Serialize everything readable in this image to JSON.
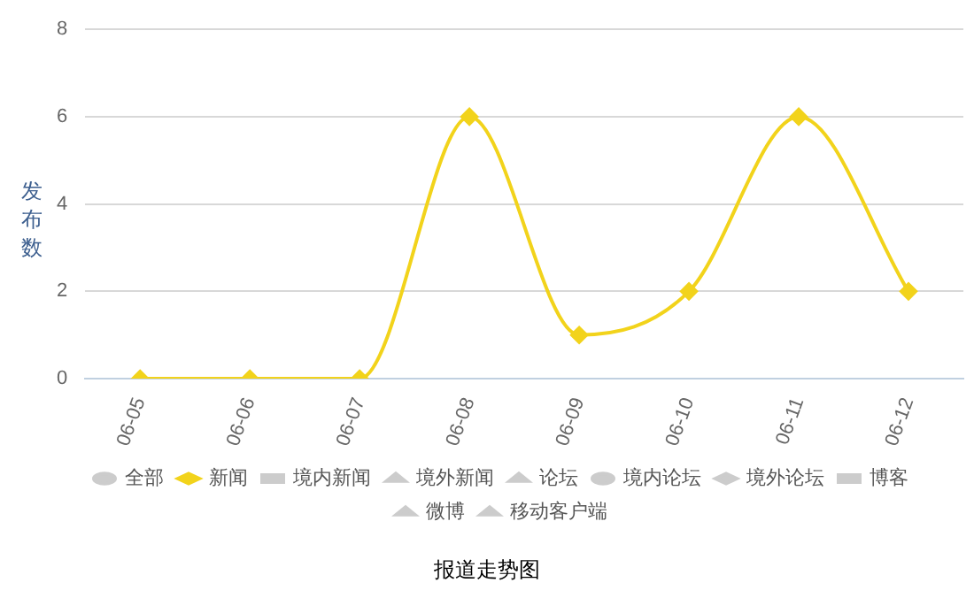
{
  "chart_data": {
    "type": "line",
    "title": "报道走势图",
    "ylabel": "发布数",
    "categories": [
      "06-05",
      "06-06",
      "06-07",
      "06-08",
      "06-09",
      "06-10",
      "06-11",
      "06-12"
    ],
    "series": [
      {
        "name": "全部",
        "color": "#cccccc",
        "marker": "circle",
        "values": [
          null,
          null,
          null,
          null,
          null,
          null,
          null,
          null
        ]
      },
      {
        "name": "新闻",
        "color": "#f2d31b",
        "marker": "diamond",
        "values": [
          0,
          0,
          0,
          6,
          1,
          2,
          6,
          2
        ]
      },
      {
        "name": "境内新闻",
        "color": "#cccccc",
        "marker": "square",
        "values": [
          null,
          null,
          null,
          null,
          null,
          null,
          null,
          null
        ]
      },
      {
        "name": "境外新闻",
        "color": "#cccccc",
        "marker": "triangle",
        "values": [
          null,
          null,
          null,
          null,
          null,
          null,
          null,
          null
        ]
      },
      {
        "name": "论坛",
        "color": "#cccccc",
        "marker": "triangle",
        "values": [
          null,
          null,
          null,
          null,
          null,
          null,
          null,
          null
        ]
      },
      {
        "name": "境内论坛",
        "color": "#cccccc",
        "marker": "circle",
        "values": [
          null,
          null,
          null,
          null,
          null,
          null,
          null,
          null
        ]
      },
      {
        "name": "境外论坛",
        "color": "#cccccc",
        "marker": "diamond",
        "values": [
          null,
          null,
          null,
          null,
          null,
          null,
          null,
          null
        ]
      },
      {
        "name": "博客",
        "color": "#cccccc",
        "marker": "square",
        "values": [
          null,
          null,
          null,
          null,
          null,
          null,
          null,
          null
        ]
      },
      {
        "name": "微博",
        "color": "#cccccc",
        "marker": "triangle",
        "values": [
          null,
          null,
          null,
          null,
          null,
          null,
          null,
          null
        ]
      },
      {
        "name": "移动客户端",
        "color": "#cccccc",
        "marker": "triangle",
        "values": [
          null,
          null,
          null,
          null,
          null,
          null,
          null,
          null
        ]
      }
    ],
    "ylim": [
      0,
      8
    ],
    "yticks": [
      0,
      2,
      4,
      6,
      8
    ],
    "grid": "y",
    "legend": "bottom"
  }
}
